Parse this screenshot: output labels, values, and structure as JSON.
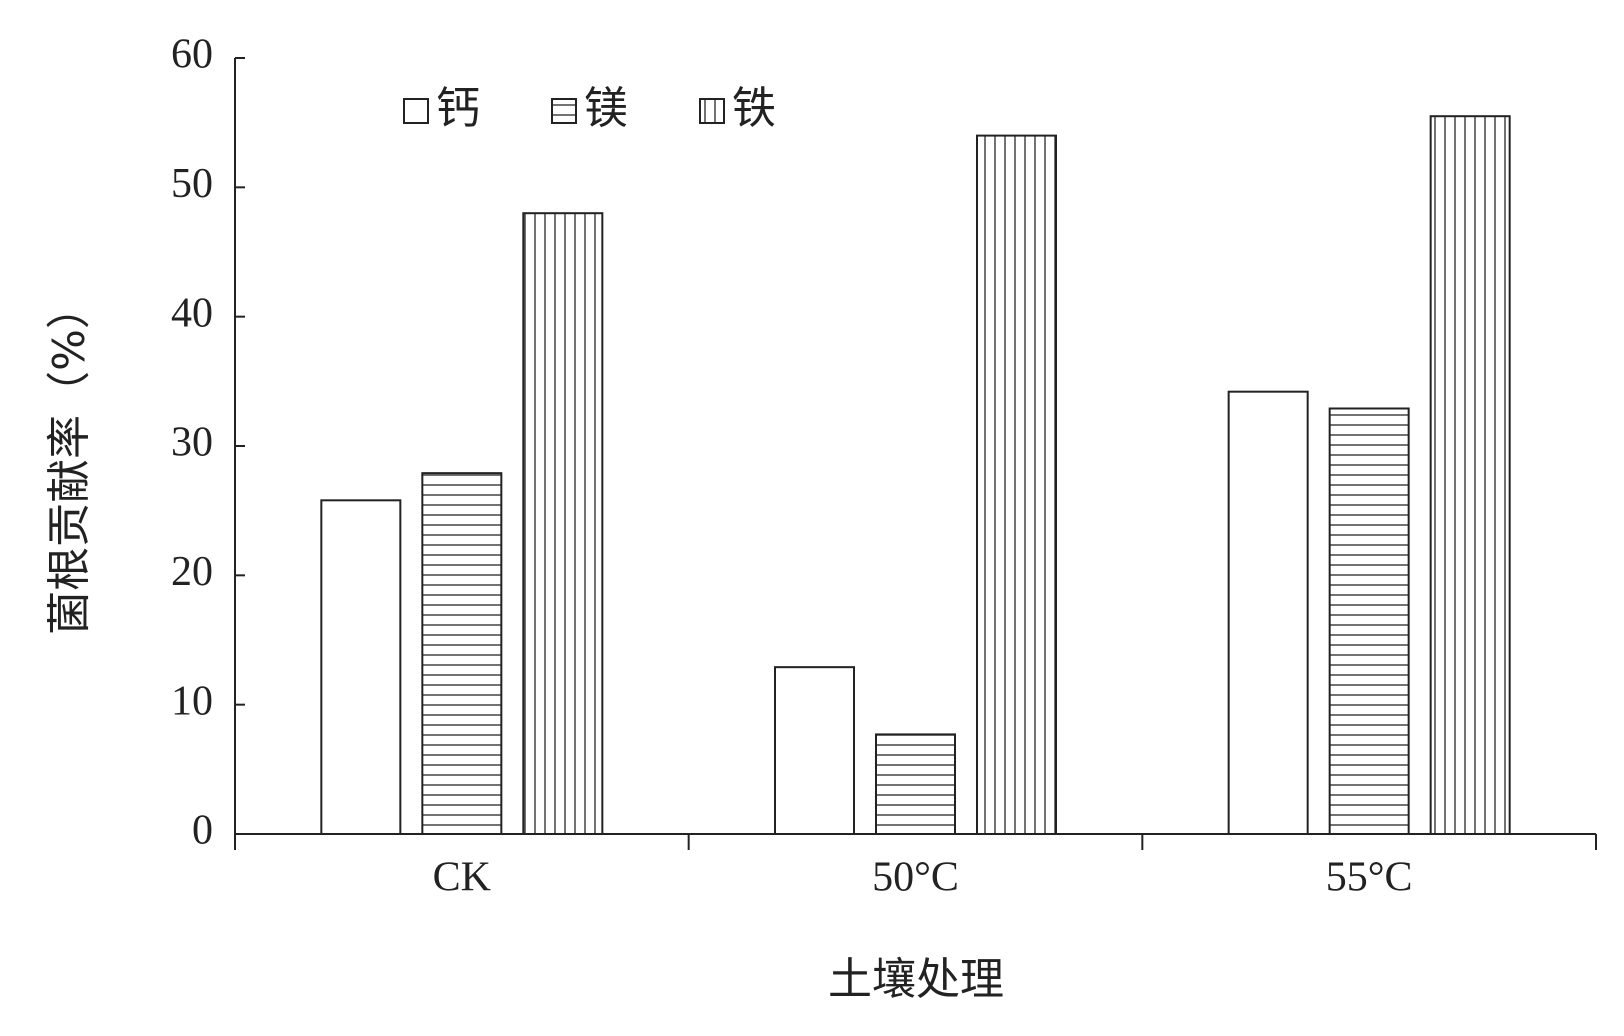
{
  "chart_data": {
    "type": "bar",
    "x_label": "土壤处理",
    "y_label": "菌根贡献率（%）",
    "categories": [
      "CK",
      "50°C",
      "55°C"
    ],
    "series": [
      {
        "name": "钙",
        "color": "#ffffff",
        "pattern": "none",
        "values": [
          25.8,
          12.9,
          34.2
        ]
      },
      {
        "name": "镁",
        "color": "#ffffff",
        "pattern": "horizontal",
        "values": [
          27.9,
          7.7,
          32.9
        ]
      },
      {
        "name": "铁",
        "color": "#ffffff",
        "pattern": "vertical",
        "values": [
          48,
          54,
          55.5
        ]
      }
    ],
    "ylim": [
      0,
      60
    ],
    "yticks": [
      0,
      10,
      20,
      30,
      40,
      50,
      60
    ],
    "grid": false,
    "legend": "top-left"
  }
}
